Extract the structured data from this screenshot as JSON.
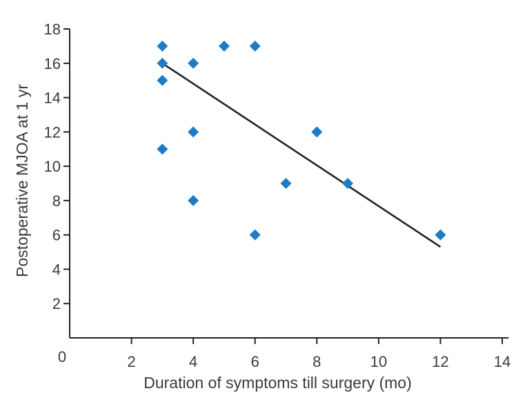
{
  "chart_data": {
    "type": "scatter",
    "title": "",
    "xlabel": "Duration of symptoms till surgery (mo)",
    "ylabel": "Postoperative MJOA at 1 yr",
    "xlim": [
      0,
      14
    ],
    "ylim": [
      0,
      18
    ],
    "origin_label": "0",
    "x_ticks": [
      2,
      4,
      6,
      8,
      10,
      12,
      14
    ],
    "y_ticks": [
      2,
      4,
      6,
      8,
      10,
      12,
      14,
      16,
      18
    ],
    "grid": false,
    "marker": "diamond",
    "marker_color": "#1f7cc4",
    "line_color": "#222222",
    "points": [
      {
        "x": 3,
        "y": 17
      },
      {
        "x": 3,
        "y": 16
      },
      {
        "x": 3,
        "y": 15
      },
      {
        "x": 3,
        "y": 11
      },
      {
        "x": 4,
        "y": 16
      },
      {
        "x": 4,
        "y": 12
      },
      {
        "x": 4,
        "y": 8
      },
      {
        "x": 5,
        "y": 17
      },
      {
        "x": 6,
        "y": 17
      },
      {
        "x": 6,
        "y": 6
      },
      {
        "x": 7,
        "y": 9
      },
      {
        "x": 8,
        "y": 12
      },
      {
        "x": 9,
        "y": 9
      },
      {
        "x": 12,
        "y": 6
      }
    ],
    "trendline": {
      "x_start": 3,
      "y_start": 16,
      "x_end": 12,
      "y_end": 5.3
    }
  }
}
